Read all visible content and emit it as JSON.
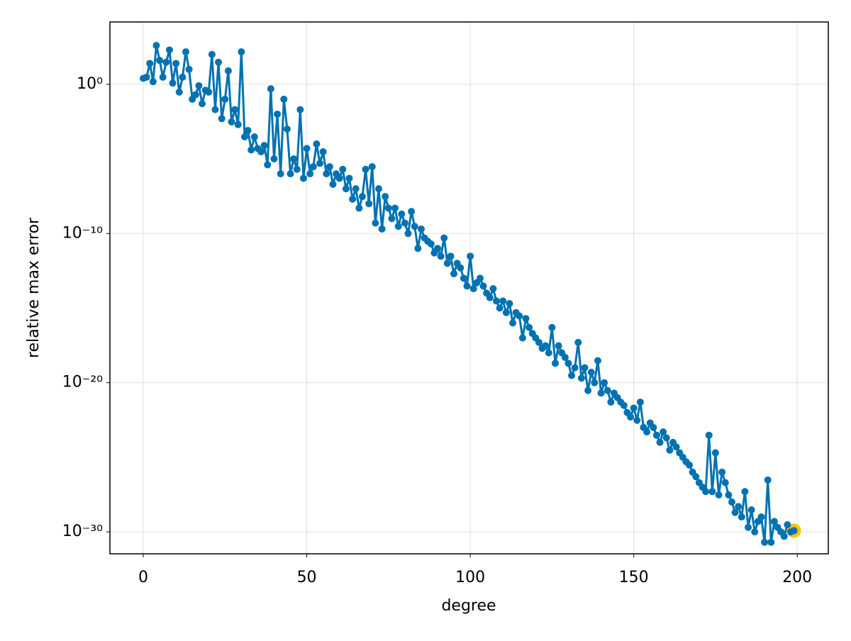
{
  "chart_data": {
    "type": "line",
    "markers": true,
    "x_label": "degree",
    "y_label": "relative max error",
    "color": "#0072b2",
    "highlight": {
      "index": 199,
      "color": "#f5c400"
    },
    "log_y": true,
    "grid": true,
    "xlim": [
      -10.2,
      209.5
    ],
    "xticks": [
      0,
      50,
      100,
      150,
      200
    ],
    "ylim": [
      3.4e-32,
      15000.0
    ],
    "yticks": [
      {
        "value": 1,
        "label": "10⁰"
      },
      {
        "value": 1e-10,
        "label": "10⁻¹⁰"
      },
      {
        "value": 1e-20,
        "label": "10⁻²⁰"
      },
      {
        "value": 1e-30,
        "label": "10⁻³⁰"
      }
    ],
    "x": [
      0,
      1,
      2,
      3,
      4,
      5,
      6,
      7,
      8,
      9,
      10,
      11,
      12,
      13,
      14,
      15,
      16,
      17,
      18,
      19,
      20,
      21,
      22,
      23,
      24,
      25,
      26,
      27,
      28,
      29,
      30,
      31,
      32,
      33,
      34,
      35,
      36,
      37,
      38,
      39,
      40,
      41,
      42,
      43,
      44,
      45,
      46,
      47,
      48,
      49,
      50,
      51,
      52,
      53,
      54,
      55,
      56,
      57,
      58,
      59,
      60,
      61,
      62,
      63,
      64,
      65,
      66,
      67,
      68,
      69,
      70,
      71,
      72,
      73,
      74,
      75,
      76,
      77,
      78,
      79,
      80,
      81,
      82,
      83,
      84,
      85,
      86,
      87,
      88,
      89,
      90,
      91,
      92,
      93,
      94,
      95,
      96,
      97,
      98,
      99,
      100,
      101,
      102,
      103,
      104,
      105,
      106,
      107,
      108,
      109,
      110,
      111,
      112,
      113,
      114,
      115,
      116,
      117,
      118,
      119,
      120,
      121,
      122,
      123,
      124,
      125,
      126,
      127,
      128,
      129,
      130,
      131,
      132,
      133,
      134,
      135,
      136,
      137,
      138,
      139,
      140,
      141,
      142,
      143,
      144,
      145,
      146,
      147,
      148,
      149,
      150,
      151,
      152,
      153,
      154,
      155,
      156,
      157,
      158,
      159,
      160,
      161,
      162,
      163,
      164,
      165,
      166,
      167,
      168,
      169,
      170,
      171,
      172,
      173,
      174,
      175,
      176,
      177,
      178,
      179,
      180,
      181,
      182,
      183,
      184,
      185,
      186,
      187,
      188,
      189,
      190,
      191,
      192,
      193,
      194,
      195,
      196,
      197,
      198,
      199
    ],
    "values": [
      2.5,
      3,
      25,
      1.5,
      400,
      40,
      3,
      30,
      200,
      1.2,
      25,
      0.3,
      3,
      150,
      10,
      0.1,
      0.2,
      0.8,
      0.05,
      0.4,
      0.3,
      100,
      0.02,
      30,
      0.005,
      0.1,
      8,
      0.003,
      0.02,
      0.002,
      150,
      0.0003,
      0.0008,
      4e-05,
      0.0003,
      5e-05,
      3e-05,
      8e-05,
      4e-06,
      0.5,
      1e-05,
      0.01,
      1e-06,
      0.1,
      0.001,
      1e-06,
      1e-05,
      2e-06,
      0.02,
      5e-07,
      5e-05,
      1e-06,
      3e-06,
      0.0001,
      5e-06,
      3e-05,
      1e-06,
      3e-06,
      2e-07,
      1e-06,
      5e-07,
      2e-06,
      1e-07,
      5e-07,
      2e-08,
      1e-07,
      5e-09,
      3e-08,
      2e-06,
      1e-08,
      3e-06,
      5e-10,
      1e-07,
      2e-10,
      3e-08,
      5e-09,
      1e-09,
      5e-09,
      3e-10,
      2e-09,
      5e-10,
      1e-10,
      3e-09,
      3e-10,
      1e-11,
      2e-10,
      5e-11,
      3e-11,
      2e-11,
      5e-12,
      1e-11,
      3e-12,
      5e-11,
      1e-12,
      3e-12,
      2e-13,
      1e-12,
      5e-13,
      1e-13,
      3e-14,
      3e-12,
      2e-14,
      5e-14,
      1e-13,
      3e-14,
      1e-14,
      5e-15,
      2e-14,
      3e-15,
      1e-15,
      3e-15,
      5e-16,
      2e-15,
      1e-16,
      5e-16,
      3e-16,
      1e-17,
      2e-16,
      5e-17,
      2e-17,
      1e-17,
      5e-18,
      2e-18,
      3e-18,
      1e-18,
      5e-17,
      2e-19,
      3e-18,
      1e-18,
      5e-19,
      2e-19,
      3e-20,
      1e-19,
      5e-18,
      2e-20,
      1e-19,
      3e-21,
      5e-20,
      1e-20,
      3e-19,
      2e-21,
      1e-20,
      3e-21,
      5e-22,
      2e-21,
      1e-21,
      5e-22,
      3e-22,
      1e-22,
      5e-23,
      2e-22,
      3e-23,
      5e-22,
      1e-23,
      5e-24,
      2e-23,
      1e-23,
      3e-24,
      1e-24,
      5e-24,
      2e-24,
      3e-25,
      1e-24,
      5e-25,
      2e-25,
      1e-25,
      5e-26,
      3e-26,
      1e-26,
      5e-27,
      2e-27,
      1e-27,
      5e-28,
      3e-24,
      5e-28,
      2e-25,
      3e-28,
      1e-26,
      2e-27,
      3e-28,
      1e-28,
      2e-29,
      5e-29,
      1e-29,
      5e-28,
      2e-30,
      3e-29,
      1e-30,
      5e-30,
      1e-29,
      2e-31,
      3e-27,
      2e-31,
      5e-30,
      2e-30,
      1e-30,
      5e-31,
      3e-30,
      1e-30,
      1.2e-30
    ]
  }
}
